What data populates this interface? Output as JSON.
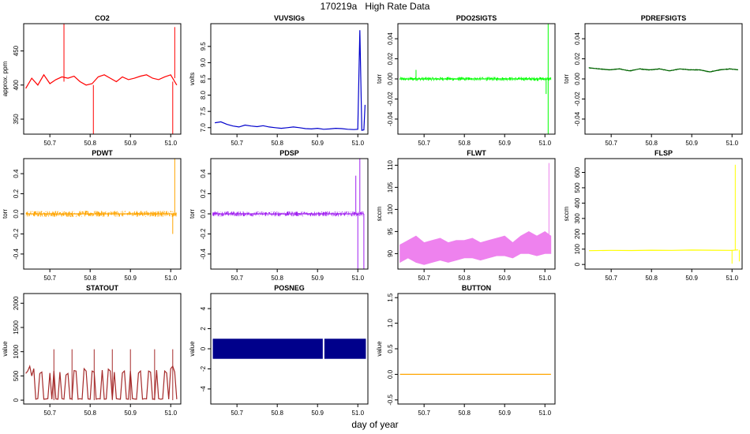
{
  "title": "170219a   High Rate Data",
  "footer_xlabel": "day of year",
  "chart_data": [
    {
      "type": "line",
      "title": "CO2",
      "ylabel": "approx. ppm",
      "color": "#ff0000",
      "xlim": [
        50.635,
        51.025
      ],
      "xticks": [
        50.7,
        50.8,
        50.9,
        51.0
      ],
      "xtick_labels": [
        "50.7",
        "50.8",
        "50.9",
        "51.0"
      ],
      "ylim": [
        328,
        490
      ],
      "yticks": [
        350,
        400,
        450
      ],
      "ytick_labels": [
        "350",
        "400",
        "450"
      ],
      "series": [
        {
          "name": "CO2",
          "x": [
            50.64,
            50.655,
            50.67,
            50.685,
            50.7,
            50.715,
            50.73,
            50.745,
            50.76,
            50.775,
            50.79,
            50.805,
            50.82,
            50.835,
            50.85,
            50.865,
            50.88,
            50.895,
            50.91,
            50.925,
            50.94,
            50.955,
            50.97,
            50.985,
            51.0,
            51.015
          ],
          "y": [
            395,
            410,
            400,
            415,
            402,
            408,
            412,
            410,
            413,
            405,
            400,
            402,
            412,
            415,
            410,
            405,
            412,
            408,
            410,
            413,
            415,
            410,
            408,
            412,
            415,
            400
          ]
        }
      ],
      "spikes": [
        {
          "x": 50.735,
          "y0": 405,
          "y1": 490
        },
        {
          "x": 50.808,
          "y0": 400,
          "y1": 328
        },
        {
          "x": 51.005,
          "y0": 405,
          "y1": 328
        },
        {
          "x": 51.01,
          "y0": 410,
          "y1": 485
        }
      ]
    },
    {
      "type": "line",
      "title": "VUVSIGs",
      "ylabel": "volts",
      "color": "#0000cc",
      "xlim": [
        50.635,
        51.025
      ],
      "xticks": [
        50.7,
        50.8,
        50.9,
        51.0
      ],
      "xtick_labels": [
        "50.7",
        "50.8",
        "50.9",
        "51.0"
      ],
      "ylim": [
        6.8,
        10.2
      ],
      "yticks": [
        7.0,
        7.5,
        8.0,
        8.5,
        9.0,
        9.5
      ],
      "ytick_labels": [
        "7.0",
        "7.5",
        "8.0",
        "8.5",
        "9.0",
        "9.5"
      ],
      "series": [
        {
          "name": "VUVSIGs",
          "x": [
            50.645,
            50.66,
            50.675,
            50.69,
            50.705,
            50.72,
            50.735,
            50.75,
            50.765,
            50.78,
            50.795,
            50.81,
            50.825,
            50.84,
            50.855,
            50.87,
            50.885,
            50.9,
            50.915,
            50.93,
            50.945,
            50.96,
            50.975,
            50.99,
            51.0,
            51.005,
            51.01,
            51.015,
            51.018
          ],
          "y": [
            7.15,
            7.18,
            7.1,
            7.05,
            7.02,
            7.08,
            7.05,
            7.03,
            7.06,
            7.02,
            7.0,
            6.98,
            7.0,
            7.02,
            7.0,
            6.97,
            6.96,
            6.98,
            6.95,
            6.96,
            6.98,
            6.97,
            6.95,
            6.94,
            6.95,
            10.0,
            6.92,
            6.93,
            7.7
          ]
        }
      ],
      "spikes": []
    },
    {
      "type": "line",
      "title": "PDO2SIGTS",
      "ylabel": "torr",
      "color": "#00ff00",
      "xlim": [
        50.635,
        51.025
      ],
      "xticks": [
        50.7,
        50.8,
        50.9,
        51.0
      ],
      "xtick_labels": [
        "50.7",
        "50.8",
        "50.9",
        "51.0"
      ],
      "ylim": [
        -0.055,
        0.055
      ],
      "yticks": [
        -0.04,
        -0.02,
        0.0,
        0.02,
        0.04
      ],
      "ytick_labels": [
        "-0.04",
        "-0.02",
        "0.00",
        "0.02",
        "0.04"
      ],
      "series": [
        {
          "name": "PDO2SIGTS",
          "x": [
            50.64,
            51.015
          ],
          "y": [
            0.0,
            0.0
          ]
        }
      ],
      "noise": 0.002,
      "spikes": [
        {
          "x": 50.68,
          "y0": 0.0,
          "y1": 0.009
        },
        {
          "x": 51.003,
          "y0": 0.0,
          "y1": -0.015
        },
        {
          "x": 51.008,
          "y0": 0.0,
          "y1": 0.055
        },
        {
          "x": 51.008,
          "y0": 0.0,
          "y1": -0.055
        }
      ]
    },
    {
      "type": "line",
      "title": "PDREFSIGTS",
      "ylabel": "torr",
      "color": "#006400",
      "xlim": [
        50.635,
        51.025
      ],
      "xticks": [
        50.7,
        50.8,
        50.9,
        51.0
      ],
      "xtick_labels": [
        "50.7",
        "50.8",
        "50.9",
        "51.0"
      ],
      "ylim": [
        -0.055,
        0.055
      ],
      "yticks": [
        -0.04,
        -0.02,
        0.0,
        0.02,
        0.04
      ],
      "ytick_labels": [
        "-0.04",
        "-0.02",
        "0.00",
        "0.02",
        "0.04"
      ],
      "series": [
        {
          "name": "PDREFSIGTS",
          "x": [
            50.645,
            50.67,
            50.695,
            50.72,
            50.745,
            50.77,
            50.795,
            50.82,
            50.845,
            50.87,
            50.895,
            50.92,
            50.945,
            50.97,
            50.995,
            51.015
          ],
          "y": [
            0.011,
            0.01,
            0.009,
            0.01,
            0.008,
            0.01,
            0.009,
            0.01,
            0.008,
            0.01,
            0.009,
            0.009,
            0.007,
            0.009,
            0.01,
            0.009
          ]
        }
      ],
      "noise": 0.0008,
      "spikes": []
    },
    {
      "type": "line",
      "title": "PDWT",
      "ylabel": "torr",
      "color": "#ffa500",
      "xlim": [
        50.635,
        51.025
      ],
      "xticks": [
        50.7,
        50.8,
        50.9,
        51.0
      ],
      "xtick_labels": [
        "50.7",
        "50.8",
        "50.9",
        "51.0"
      ],
      "ylim": [
        -0.55,
        0.55
      ],
      "yticks": [
        -0.4,
        -0.2,
        0.0,
        0.2,
        0.4
      ],
      "ytick_labels": [
        "-0.4",
        "-0.2",
        "0.0",
        "0.2",
        "0.4"
      ],
      "series": [
        {
          "name": "PDWT",
          "x": [
            50.64,
            51.015
          ],
          "y": [
            0.0,
            0.0
          ]
        }
      ],
      "noise": 0.03,
      "spikes": [
        {
          "x": 51.005,
          "y0": 0.0,
          "y1": -0.2
        },
        {
          "x": 51.01,
          "y0": 0.0,
          "y1": 0.55
        }
      ]
    },
    {
      "type": "line",
      "title": "PDSP",
      "ylabel": "torr",
      "color": "#a020f0",
      "xlim": [
        50.635,
        51.025
      ],
      "xticks": [
        50.7,
        50.8,
        50.9,
        51.0
      ],
      "xtick_labels": [
        "50.7",
        "50.8",
        "50.9",
        "51.0"
      ],
      "ylim": [
        -0.55,
        0.55
      ],
      "yticks": [
        -0.4,
        -0.2,
        0.0,
        0.2,
        0.4
      ],
      "ytick_labels": [
        "-0.4",
        "-0.2",
        "0.0",
        "0.2",
        "0.4"
      ],
      "series": [
        {
          "name": "PDSP",
          "x": [
            50.64,
            51.015
          ],
          "y": [
            0.0,
            0.0
          ]
        }
      ],
      "noise": 0.025,
      "spikes": [
        {
          "x": 50.995,
          "y0": 0.0,
          "y1": 0.38
        },
        {
          "x": 51.0,
          "y0": 0.0,
          "y1": -0.55
        },
        {
          "x": 51.005,
          "y0": 0.0,
          "y1": 0.55
        },
        {
          "x": 51.015,
          "y0": 0.0,
          "y1": -0.55
        }
      ]
    },
    {
      "type": "area",
      "title": "FLWT",
      "ylabel": "sccm",
      "color": "#ee82ee",
      "xlim": [
        50.635,
        51.025
      ],
      "xticks": [
        50.7,
        50.8,
        50.9,
        51.0
      ],
      "xtick_labels": [
        "50.7",
        "50.8",
        "50.9",
        "51.0"
      ],
      "ylim": [
        86.5,
        111.5
      ],
      "yticks": [
        90,
        95,
        100,
        105,
        110
      ],
      "ytick_labels": [
        "90",
        "95",
        "100",
        "105",
        "110"
      ],
      "series": [
        {
          "name": "FLWT",
          "x": [
            50.64,
            50.66,
            50.68,
            50.7,
            50.72,
            50.74,
            50.76,
            50.78,
            50.8,
            50.82,
            50.84,
            50.86,
            50.88,
            50.9,
            50.92,
            50.94,
            50.96,
            50.98,
            51.0,
            51.015
          ],
          "y_low": [
            88,
            89,
            88,
            87.5,
            88,
            88.5,
            88,
            88.5,
            89,
            89,
            88.5,
            89,
            89.5,
            89.5,
            89,
            90,
            90,
            89.5,
            90,
            90
          ],
          "y_high": [
            92,
            93,
            94,
            92.5,
            93,
            93.5,
            92.5,
            93,
            93,
            93.5,
            92.5,
            93,
            93.5,
            94,
            92.5,
            94,
            95,
            94,
            95,
            94
          ]
        }
      ],
      "spikes": [
        {
          "x": 51.01,
          "y0": 92,
          "y1": 110.5
        }
      ]
    },
    {
      "type": "line",
      "title": "FLSP",
      "ylabel": "sccm",
      "color": "#ffff00",
      "xlim": [
        50.635,
        51.025
      ],
      "xticks": [
        50.7,
        50.8,
        50.9,
        51.0
      ],
      "xtick_labels": [
        "50.7",
        "50.8",
        "50.9",
        "51.0"
      ],
      "ylim": [
        -30,
        690
      ],
      "yticks": [
        0,
        100,
        200,
        300,
        400,
        500,
        600
      ],
      "ytick_labels": [
        "0",
        "100",
        "200",
        "300",
        "400",
        "500",
        "600"
      ],
      "series": [
        {
          "name": "FLSP",
          "x": [
            50.645,
            50.7,
            50.75,
            50.8,
            50.85,
            50.9,
            50.95,
            51.0,
            51.015
          ],
          "y": [
            90,
            92,
            91,
            93,
            92,
            94,
            93,
            92,
            95
          ]
        }
      ],
      "spikes": [
        {
          "x": 51.0,
          "y0": 95,
          "y1": 5
        },
        {
          "x": 51.008,
          "y0": 95,
          "y1": 650
        },
        {
          "x": 51.018,
          "y0": 95,
          "y1": 20
        }
      ]
    },
    {
      "type": "line",
      "title": "STATOUT",
      "ylabel": "value",
      "color": "#a52a2a",
      "xlim": [
        50.635,
        51.025
      ],
      "xticks": [
        50.7,
        50.8,
        50.9,
        51.0
      ],
      "xtick_labels": [
        "50.7",
        "50.8",
        "50.9",
        "51.0"
      ],
      "ylim": [
        -80,
        2200
      ],
      "yticks": [
        0,
        500,
        1000,
        1500,
        2000
      ],
      "ytick_labels": [
        "0",
        "500",
        "1000",
        "1500",
        "2000"
      ],
      "series": [
        {
          "name": "STATOUT",
          "x": [
            50.64,
            50.645,
            50.65,
            50.655,
            50.66,
            50.665,
            50.67,
            50.675,
            50.68,
            50.685,
            50.69,
            50.695,
            50.7,
            50.705,
            50.71,
            50.715,
            50.72,
            50.725,
            50.73,
            50.735,
            50.74,
            50.745,
            50.75,
            50.755,
            50.76,
            50.765,
            50.77,
            50.775,
            50.78,
            50.785,
            50.79,
            50.795,
            50.8,
            50.805,
            50.81,
            50.815,
            50.82,
            50.825,
            50.83,
            50.835,
            50.84,
            50.845,
            50.85,
            50.855,
            50.86,
            50.865,
            50.87,
            50.875,
            50.88,
            50.885,
            50.89,
            50.895,
            50.9,
            50.905,
            50.91,
            50.915,
            50.92,
            50.925,
            50.93,
            50.935,
            50.94,
            50.945,
            50.95,
            50.955,
            50.96,
            50.965,
            50.97,
            50.975,
            50.98,
            50.985,
            50.99,
            50.995,
            51.0,
            51.005,
            51.01,
            51.015
          ],
          "y": [
            550,
            600,
            700,
            500,
            650,
            20,
            30,
            550,
            580,
            20,
            25,
            30,
            560,
            20,
            600,
            25,
            20,
            580,
            30,
            20,
            520,
            550,
            25,
            30,
            610,
            600,
            20,
            30,
            20,
            650,
            600,
            25,
            20,
            600,
            580,
            20,
            30,
            25,
            620,
            20,
            25,
            640,
            600,
            20,
            580,
            30,
            25,
            20,
            560,
            600,
            25,
            20,
            600,
            30,
            25,
            20,
            560,
            600,
            20,
            30,
            25,
            600,
            580,
            20,
            25,
            620,
            30,
            20,
            25,
            600,
            560,
            20,
            650,
            700,
            580,
            20
          ]
        }
      ],
      "spikes": [
        {
          "x": 50.71,
          "y0": 0,
          "y1": 1050
        },
        {
          "x": 50.755,
          "y0": 0,
          "y1": 1050
        },
        {
          "x": 50.81,
          "y0": 0,
          "y1": 1050
        },
        {
          "x": 50.855,
          "y0": 0,
          "y1": 1050
        },
        {
          "x": 50.9,
          "y0": 0,
          "y1": 1050
        },
        {
          "x": 50.96,
          "y0": 0,
          "y1": 1050
        },
        {
          "x": 51.005,
          "y0": 0,
          "y1": 1050
        }
      ]
    },
    {
      "type": "bar",
      "title": "POSNEG",
      "ylabel": "value",
      "color": "#00008b",
      "xlim": [
        50.635,
        51.025
      ],
      "xticks": [
        50.7,
        50.8,
        50.9,
        51.0
      ],
      "xtick_labels": [
        "50.7",
        "50.8",
        "50.9",
        "51.0"
      ],
      "ylim": [
        -5.5,
        5.5
      ],
      "yticks": [
        -4,
        -2,
        0,
        2,
        4
      ],
      "ytick_labels": [
        "-4",
        "-2",
        "0",
        "2",
        "4"
      ],
      "bands": [
        {
          "x0": 50.64,
          "x1": 50.913,
          "y0": -1,
          "y1": 1
        },
        {
          "x0": 50.917,
          "x1": 51.02,
          "y0": -1,
          "y1": 1
        }
      ],
      "series": [],
      "spikes": []
    },
    {
      "type": "line",
      "title": "BUTTON",
      "ylabel": "value",
      "color": "#ffa500",
      "xlim": [
        50.635,
        51.025
      ],
      "xticks": [
        50.7,
        50.8,
        50.9,
        51.0
      ],
      "xtick_labels": [
        "50.7",
        "50.8",
        "50.9",
        "51.0"
      ],
      "ylim": [
        -0.58,
        1.58
      ],
      "yticks": [
        -0.5,
        0.0,
        0.5,
        1.0,
        1.5
      ],
      "ytick_labels": [
        "-0.5",
        "0.0",
        "0.5",
        "1.0",
        "1.5"
      ],
      "series": [
        {
          "name": "BUTTON",
          "x": [
            50.64,
            51.015
          ],
          "y": [
            0.0,
            0.0
          ]
        }
      ],
      "spikes": []
    }
  ]
}
